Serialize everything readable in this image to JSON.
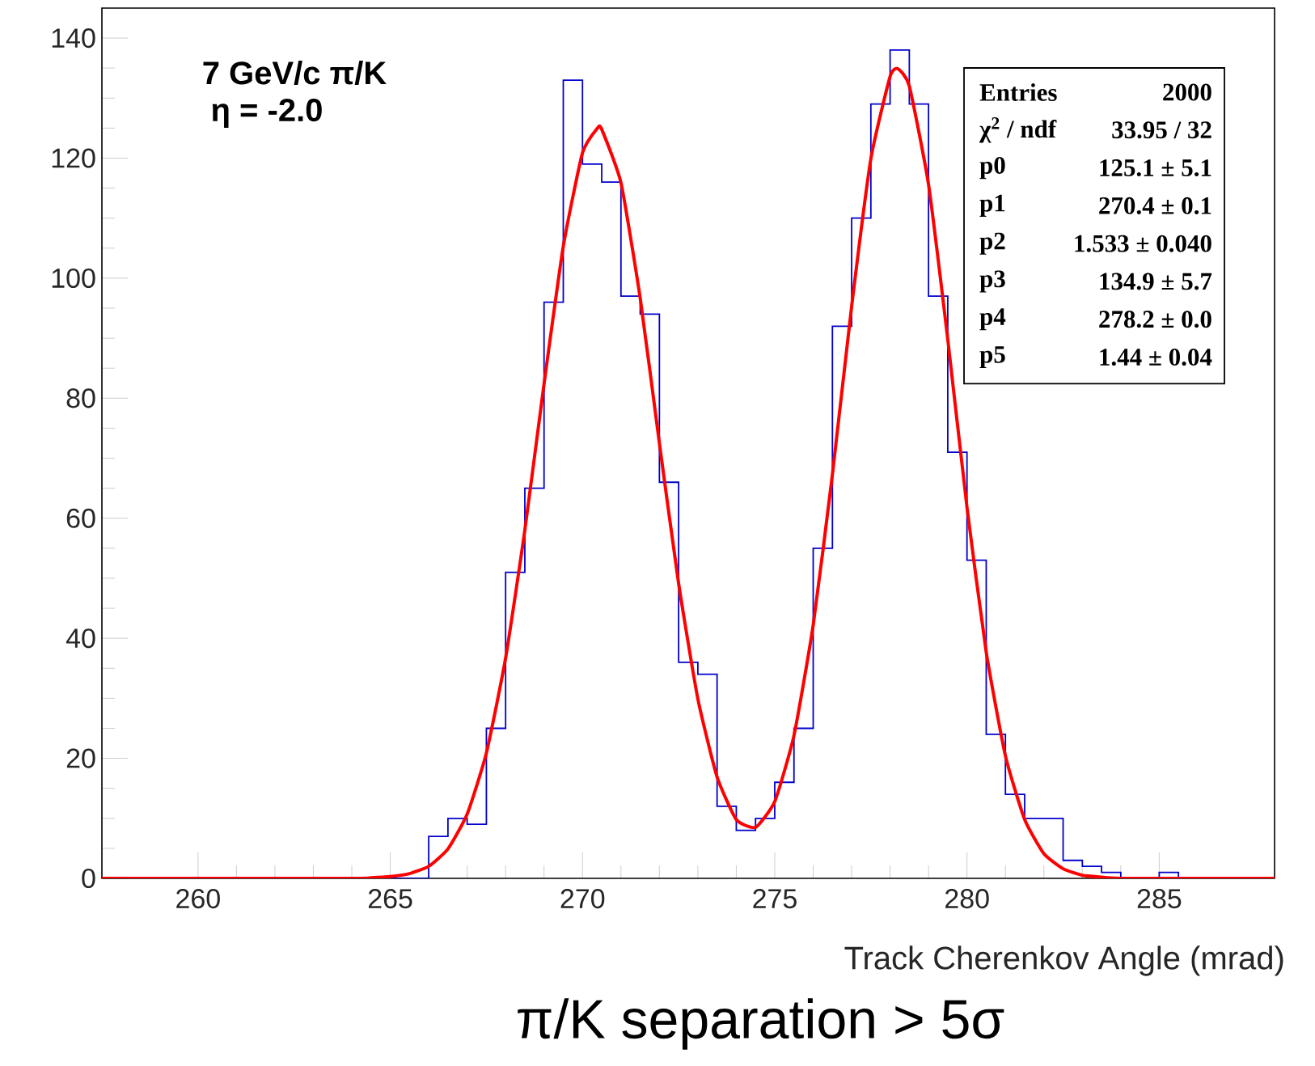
{
  "chart_data": {
    "type": "histogram",
    "xlabel": "Track Cherenkov Angle (mrad)",
    "annotations": [
      "7 GeV/c π/K",
      "η = -2.0",
      "Entries",
      "2000",
      "χ$^{2}$ / ndf",
      "33.95 / 32",
      "p0",
      "125.1  ± 5.1",
      "p1",
      "270.4  ± 0.1",
      "p2",
      "1.533  ± 0.040",
      "p3",
      "134.9  ± 5.7",
      "p4",
      "278.2  ± 0.0",
      "p5",
      "1.44  ± 0.04",
      "π/K separation > 5σ"
    ],
    "xlim": [
      257.5,
      288
    ],
    "ylim": [
      0,
      145
    ],
    "xticks": [
      260,
      265,
      270,
      275,
      280,
      285
    ],
    "yticks": [
      0,
      20,
      40,
      60,
      80,
      100,
      120,
      140
    ],
    "series": [
      {
        "color": "#0000cc",
        "bins": [
          257.5,
          258,
          258.5,
          259,
          259.5,
          260,
          260.5,
          261,
          261.5,
          262,
          262.5,
          263,
          263.5,
          264,
          264.5,
          265,
          265.5,
          266,
          266.5,
          267,
          267.5,
          268,
          268.5,
          269,
          269.5,
          270,
          270.5,
          271,
          271.5,
          272,
          272.5,
          273,
          273.5,
          274,
          274.5,
          275,
          275.5,
          276,
          276.5,
          277,
          277.5,
          278,
          278.5,
          279,
          279.5,
          280,
          280.5,
          281,
          281.5,
          282,
          282.5,
          283,
          283.5,
          284,
          284.5,
          285,
          285.5,
          286,
          286.5,
          287,
          287.5,
          288
        ],
        "values": [
          0,
          0,
          0,
          0,
          0,
          0,
          0,
          0,
          0,
          0,
          0,
          0,
          0,
          0,
          0,
          0,
          0,
          7,
          10,
          9,
          25,
          51,
          65,
          96,
          133,
          119,
          116,
          97,
          94,
          66,
          36,
          34,
          12,
          8,
          10,
          16,
          25,
          55,
          92,
          110,
          129,
          138,
          129,
          97,
          71,
          53,
          24,
          14,
          10,
          10,
          3,
          2,
          1,
          0,
          0,
          1,
          0,
          0,
          0,
          0,
          0
        ]
      },
      {
        "type": "line",
        "color": "#ff0000",
        "x": [
          257.5,
          264,
          264.5,
          265,
          265.5,
          266,
          266.5,
          267,
          267.5,
          268,
          268.5,
          269,
          269.5,
          270,
          270.4,
          270.5,
          271,
          271.5,
          272,
          272.5,
          273,
          273.5,
          274,
          274.5,
          275,
          275.5,
          276,
          276.5,
          277,
          277.5,
          278,
          278.2,
          278.5,
          279,
          279.5,
          280,
          280.5,
          281,
          281.5,
          282,
          282.5,
          283,
          283.5,
          284,
          288
        ],
        "values": [
          0,
          0,
          0.1,
          0.3,
          0.8,
          2.0,
          4.9,
          10.7,
          20.9,
          36.7,
          58.0,
          82.4,
          105.3,
          120.9,
          125.1,
          124.8,
          115.9,
          96.7,
          72.5,
          49.1,
          29.9,
          16.9,
          9.8,
          8.5,
          12.8,
          23.8,
          42.2,
          67.3,
          95.3,
          119.9,
          133.6,
          134.9,
          132.0,
          115.6,
          89.8,
          61.8,
          37.7,
          20.4,
          9.8,
          4.1,
          1.6,
          0.5,
          0.2,
          0,
          0
        ]
      }
    ]
  }
}
